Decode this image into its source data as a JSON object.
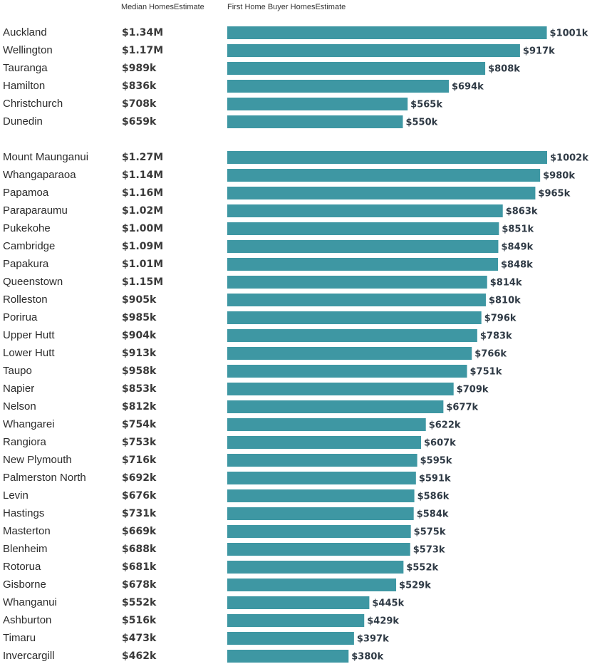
{
  "headers": {
    "median": "Median HomesEstimate",
    "first_home": "First Home Buyer HomesEstimate"
  },
  "colors": {
    "bar": "#3e97a3"
  },
  "chart_data": {
    "type": "bar",
    "orientation": "horizontal",
    "xlim": [
      0,
      1002
    ],
    "groups": [
      {
        "rows": [
          {
            "category": "Auckland",
            "median_label": "$1.34M",
            "value": 1001,
            "label": "$1001k"
          },
          {
            "category": "Wellington",
            "median_label": "$1.17M",
            "value": 917,
            "label": "$917k"
          },
          {
            "category": "Tauranga",
            "median_label": "$989k",
            "value": 808,
            "label": "$808k"
          },
          {
            "category": "Hamilton",
            "median_label": "$836k",
            "value": 694,
            "label": "$694k"
          },
          {
            "category": "Christchurch",
            "median_label": "$708k",
            "value": 565,
            "label": "$565k"
          },
          {
            "category": "Dunedin",
            "median_label": "$659k",
            "value": 550,
            "label": "$550k"
          }
        ]
      },
      {
        "rows": [
          {
            "category": "Mount Maunganui",
            "median_label": "$1.27M",
            "value": 1002,
            "label": "$1002k"
          },
          {
            "category": "Whangaparaoa",
            "median_label": "$1.14M",
            "value": 980,
            "label": "$980k"
          },
          {
            "category": "Papamoa",
            "median_label": "$1.16M",
            "value": 965,
            "label": "$965k"
          },
          {
            "category": "Paraparaumu",
            "median_label": "$1.02M",
            "value": 863,
            "label": "$863k"
          },
          {
            "category": "Pukekohe",
            "median_label": "$1.00M",
            "value": 851,
            "label": "$851k"
          },
          {
            "category": "Cambridge",
            "median_label": "$1.09M",
            "value": 849,
            "label": "$849k"
          },
          {
            "category": "Papakura",
            "median_label": "$1.01M",
            "value": 848,
            "label": "$848k"
          },
          {
            "category": "Queenstown",
            "median_label": "$1.15M",
            "value": 814,
            "label": "$814k"
          },
          {
            "category": "Rolleston",
            "median_label": "$905k",
            "value": 810,
            "label": "$810k"
          },
          {
            "category": "Porirua",
            "median_label": "$985k",
            "value": 796,
            "label": "$796k"
          },
          {
            "category": "Upper Hutt",
            "median_label": "$904k",
            "value": 783,
            "label": "$783k"
          },
          {
            "category": "Lower Hutt",
            "median_label": "$913k",
            "value": 766,
            "label": "$766k"
          },
          {
            "category": "Taupo",
            "median_label": "$958k",
            "value": 751,
            "label": "$751k"
          },
          {
            "category": "Napier",
            "median_label": "$853k",
            "value": 709,
            "label": "$709k"
          },
          {
            "category": "Nelson",
            "median_label": "$812k",
            "value": 677,
            "label": "$677k"
          },
          {
            "category": "Whangarei",
            "median_label": "$754k",
            "value": 622,
            "label": "$622k"
          },
          {
            "category": "Rangiora",
            "median_label": "$753k",
            "value": 607,
            "label": "$607k"
          },
          {
            "category": "New Plymouth",
            "median_label": "$716k",
            "value": 595,
            "label": "$595k"
          },
          {
            "category": "Palmerston North",
            "median_label": "$692k",
            "value": 591,
            "label": "$591k"
          },
          {
            "category": "Levin",
            "median_label": "$676k",
            "value": 586,
            "label": "$586k"
          },
          {
            "category": "Hastings",
            "median_label": "$731k",
            "value": 584,
            "label": "$584k"
          },
          {
            "category": "Masterton",
            "median_label": "$669k",
            "value": 575,
            "label": "$575k"
          },
          {
            "category": "Blenheim",
            "median_label": "$688k",
            "value": 573,
            "label": "$573k"
          },
          {
            "category": "Rotorua",
            "median_label": "$681k",
            "value": 552,
            "label": "$552k"
          },
          {
            "category": "Gisborne",
            "median_label": "$678k",
            "value": 529,
            "label": "$529k"
          },
          {
            "category": "Whanganui",
            "median_label": "$552k",
            "value": 445,
            "label": "$445k"
          },
          {
            "category": "Ashburton",
            "median_label": "$516k",
            "value": 429,
            "label": "$429k"
          },
          {
            "category": "Timaru",
            "median_label": "$473k",
            "value": 397,
            "label": "$397k"
          },
          {
            "category": "Invercargill",
            "median_label": "$462k",
            "value": 380,
            "label": "$380k"
          }
        ]
      }
    ]
  }
}
